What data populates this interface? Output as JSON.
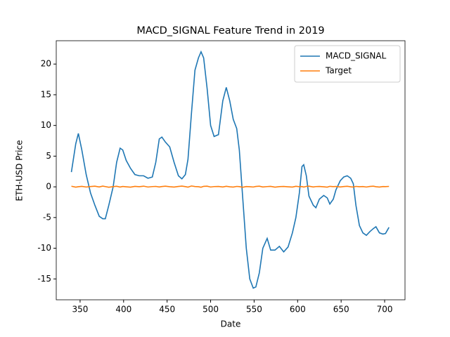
{
  "chart_data": {
    "type": "line",
    "title": "MACD_SIGNAL Feature Trend in 2019",
    "x_label": "Date",
    "y_label": "ETH-USD Price",
    "x": [
      340,
      345,
      348,
      352,
      357,
      362,
      367,
      372,
      376,
      379,
      383,
      388,
      392,
      396,
      399,
      403,
      408,
      413,
      418,
      423,
      428,
      433,
      437,
      441,
      444,
      448,
      453,
      458,
      463,
      467,
      471,
      474,
      478,
      482,
      486,
      489,
      492,
      496,
      500,
      504,
      509,
      514,
      518,
      522,
      526,
      530,
      533,
      537,
      541,
      545,
      549,
      552,
      556,
      560,
      565,
      569,
      574,
      579,
      584,
      589,
      594,
      598,
      602,
      605,
      607,
      610,
      613,
      618,
      621,
      625,
      630,
      634,
      637,
      641,
      644,
      649,
      653,
      657,
      661,
      664,
      667,
      671,
      675,
      679,
      683,
      687,
      690,
      694,
      698,
      701,
      705
    ],
    "series": [
      {
        "name": "MACD_SIGNAL",
        "color": "#1f77b4",
        "values": [
          2.4,
          7,
          8.7,
          6,
          2,
          -1,
          -3,
          -4.8,
          -5.2,
          -5.2,
          -3,
          0,
          4,
          6.3,
          6,
          4.3,
          3,
          2,
          1.8,
          1.8,
          1.4,
          1.6,
          4,
          7.8,
          8.1,
          7.3,
          6.5,
          4,
          1.8,
          1.3,
          2,
          4.5,
          12,
          19,
          21,
          22,
          21,
          16,
          10,
          8.2,
          8.5,
          14,
          16.2,
          14,
          11,
          9.5,
          6,
          -2,
          -10,
          -15,
          -16.5,
          -16.3,
          -14,
          -10,
          -8.4,
          -10.3,
          -10.3,
          -9.7,
          -10.6,
          -9.8,
          -7.5,
          -5,
          -1,
          3.3,
          3.6,
          1.8,
          -1.5,
          -3,
          -3.4,
          -2,
          -1.4,
          -1.8,
          -2.8,
          -2,
          -0.5,
          1,
          1.6,
          1.8,
          1.4,
          0.5,
          -3,
          -6.3,
          -7.5,
          -7.9,
          -7.3,
          -6.8,
          -6.5,
          -7.5,
          -7.7,
          -7.6,
          -6.6
        ]
      },
      {
        "name": "Target",
        "color": "#ff7f0e",
        "values": [
          0.1,
          -0.05,
          0.02,
          0.08,
          -0.03,
          0.05,
          0.1,
          -0.02,
          0.12,
          0.04,
          -0.06,
          0.03,
          0.09,
          -0.04,
          0.06,
          0.01,
          -0.05,
          0.08,
          0.02,
          0.11,
          -0.03,
          0.04,
          0.07,
          -0.02,
          0.05,
          0.1,
          0.02,
          -0.04,
          0.06,
          0.12,
          0.03,
          -0.05,
          0.14,
          0.05,
          0.02,
          -0.06,
          0.08,
          0.1,
          -0.03,
          0.04,
          0.06,
          -0.02,
          0.09,
          0.01,
          -0.04,
          0.07,
          0.03,
          -0.06,
          0.05,
          0.02,
          -0.03,
          0.06,
          0.1,
          -0.02,
          0.04,
          0.08,
          -0.05,
          0.03,
          0.06,
          0.01,
          -0.04,
          0.09,
          0.02,
          0.05,
          -0.03,
          0.07,
          0.1,
          -0.02,
          0.04,
          0.06,
          0.01,
          -0.05,
          0.08,
          0.03,
          0.06,
          -0.02,
          0.05,
          0.09,
          0.01,
          -0.04,
          0.07,
          0.02,
          0.05,
          -0.03,
          0.06,
          0.1,
          0.02,
          -0.04,
          0.05,
          0.03,
          0.07
        ]
      }
    ],
    "xlim": [
      322.6,
      723.4
    ],
    "ylim": [
      -18.4,
      23.8
    ],
    "xticks": [
      350,
      400,
      450,
      500,
      550,
      600,
      650,
      700
    ],
    "yticks": [
      -15,
      -10,
      -5,
      0,
      5,
      10,
      15,
      20
    ],
    "legend": "upper right"
  }
}
